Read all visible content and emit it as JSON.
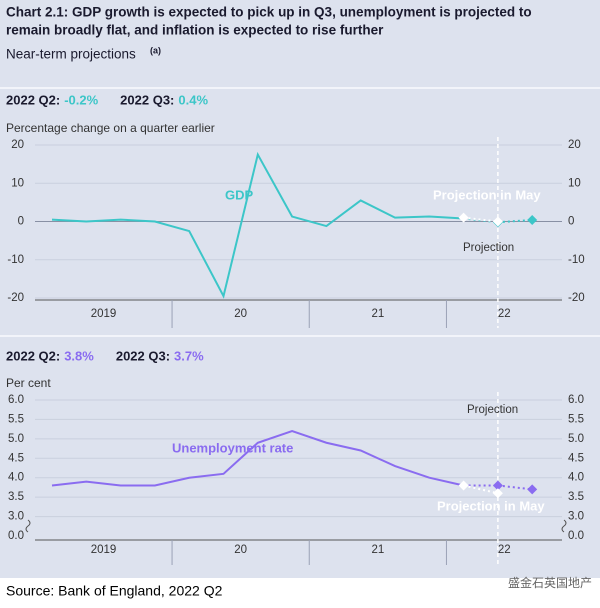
{
  "title_lines": [
    "Chart 2.1: GDP growth is expected to pick up in Q3, unemployment is projected to",
    "remain broadly flat, and inflation is expected to rise further"
  ],
  "subtitle": "Near-term projections",
  "subtitle_note": "(a)",
  "source": "Source: Bank of England, 2022 Q2",
  "watermark": "盛金石英国地产",
  "chart_data": [
    {
      "type": "line",
      "headline": [
        {
          "label": "2022 Q2:",
          "value": "-0.2%"
        },
        {
          "label": "2022 Q3:",
          "value": "0.4%"
        }
      ],
      "y_label": "Percentage change on a quarter earlier",
      "year_labels": [
        "2019",
        "20",
        "21",
        "22"
      ],
      "ylim": [
        -20,
        20
      ],
      "yticks": [
        20,
        10,
        0,
        -10,
        -20
      ],
      "series": [
        {
          "name": "GDP",
          "color": "#3cc6c8",
          "values": [
            0.5,
            0.0,
            0.5,
            0.0,
            -2.5,
            -19.5,
            17.5,
            1.3,
            -1.2,
            5.5,
            1.0,
            1.3,
            0.8,
            null,
            null
          ]
        },
        {
          "name": "Projection",
          "color": "#3cc6c8",
          "values": [
            null,
            null,
            null,
            null,
            null,
            null,
            null,
            null,
            null,
            null,
            null,
            null,
            null,
            -0.2,
            0.4
          ]
        },
        {
          "name": "Projection in May",
          "color": "#ffffff",
          "values": [
            null,
            null,
            null,
            null,
            null,
            null,
            null,
            null,
            null,
            null,
            null,
            null,
            1.0,
            0.0,
            null
          ]
        }
      ]
    },
    {
      "type": "line",
      "headline": [
        {
          "label": "2022 Q2:",
          "value": "3.8%"
        },
        {
          "label": "2022 Q3:",
          "value": "3.7%"
        }
      ],
      "y_label": "Per cent",
      "year_labels": [
        "2019",
        "20",
        "21",
        "22"
      ],
      "ylim": [
        2.5,
        6
      ],
      "y_break_label": "0.0",
      "yticks": [
        {
          "value": 6,
          "label": "6.0"
        },
        {
          "value": 5.5,
          "label": "5.5"
        },
        {
          "value": 5,
          "label": "5.0"
        },
        {
          "value": 4.5,
          "label": "4.5"
        },
        {
          "value": 4,
          "label": "4.0"
        },
        {
          "value": 3.5,
          "label": "3.5"
        },
        {
          "value": 3,
          "label": "3.0"
        }
      ],
      "series": [
        {
          "name": "Unemployment rate",
          "color": "#8a6cf0",
          "values": [
            3.8,
            3.9,
            3.8,
            3.8,
            4.0,
            4.1,
            4.9,
            5.2,
            4.9,
            4.7,
            4.3,
            4.0,
            3.8,
            null,
            null
          ]
        },
        {
          "name": "Projection",
          "color": "#8a6cf0",
          "values": [
            null,
            null,
            null,
            null,
            null,
            null,
            null,
            null,
            null,
            null,
            null,
            null,
            null,
            3.8,
            3.7
          ]
        },
        {
          "name": "Projection in May",
          "color": "#ffffff",
          "values": [
            null,
            null,
            null,
            null,
            null,
            null,
            null,
            null,
            null,
            null,
            null,
            null,
            3.8,
            3.6,
            null
          ]
        }
      ]
    }
  ]
}
